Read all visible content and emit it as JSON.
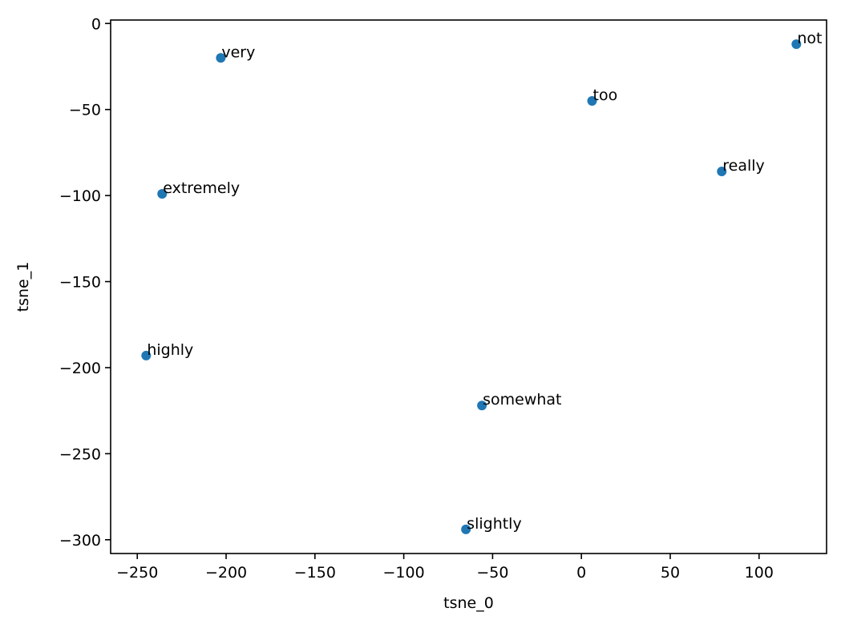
{
  "chart_data": {
    "type": "scatter",
    "xlabel": "tsne_0",
    "ylabel": "tsne_1",
    "xlim": [
      -265,
      138
    ],
    "ylim": [
      -308,
      2
    ],
    "xticks": [
      -250,
      -200,
      -150,
      -100,
      -50,
      0,
      50,
      100
    ],
    "yticks": [
      0,
      -50,
      -100,
      -150,
      -200,
      -250,
      -300
    ],
    "grid": false,
    "point_color": "#1f77b4",
    "points": [
      {
        "label": "very",
        "x": -203,
        "y": -20
      },
      {
        "label": "not",
        "x": 121,
        "y": -12
      },
      {
        "label": "too",
        "x": 6,
        "y": -45
      },
      {
        "label": "really",
        "x": 79,
        "y": -86
      },
      {
        "label": "extremely",
        "x": -236,
        "y": -99
      },
      {
        "label": "highly",
        "x": -245,
        "y": -193
      },
      {
        "label": "somewhat",
        "x": -56,
        "y": -222
      },
      {
        "label": "slightly",
        "x": -65,
        "y": -294
      }
    ]
  }
}
